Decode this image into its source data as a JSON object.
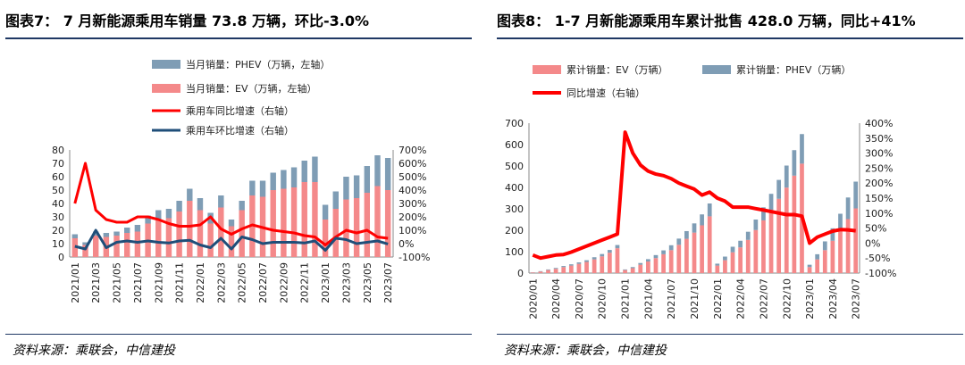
{
  "colors": {
    "ev": "#f4898a",
    "phev": "#7f9db5",
    "yoy": "#ff0000",
    "mom": "#1f4e79",
    "rule": "#1f3864"
  },
  "left": {
    "title": "图表7： 7 月新能源乘用车销量 73.8 万辆，环比-3.0%",
    "source": "资料来源：乘联会，中信建投"
  },
  "right": {
    "title": "图表8： 1-7 月新能源乘用车累计批售 428.0 万辆，同比+41%",
    "source": "资料来源：乘联会，中信建投"
  },
  "chart_data": [
    {
      "type": "bar",
      "stacked": true,
      "categories": [
        "2021/01",
        "2021/02",
        "2021/03",
        "2021/04",
        "2021/05",
        "2021/06",
        "2021/07",
        "2021/08",
        "2021/09",
        "2021/10",
        "2021/11",
        "2021/12",
        "2022/01",
        "2022/02",
        "2022/03",
        "2022/04",
        "2022/05",
        "2022/06",
        "2022/07",
        "2022/08",
        "2022/09",
        "2022/10",
        "2022/11",
        "2022/12",
        "2023/01",
        "2023/02",
        "2023/03",
        "2023/04",
        "2023/05",
        "2023/06",
        "2023/07"
      ],
      "tick_labels": [
        "2021/01",
        "2021/03",
        "2021/05",
        "2021/07",
        "2021/09",
        "2021/11",
        "2022/01",
        "2022/03",
        "2022/05",
        "2022/07",
        "2022/09",
        "2022/11",
        "2023/01",
        "2023/03",
        "2023/05",
        "2023/07"
      ],
      "series": [
        {
          "name": "当月销量：PHEV（万辆，左轴）",
          "axis": "left",
          "values": [
            3,
            2,
            3,
            3,
            3,
            4,
            5,
            6,
            7,
            7,
            8,
            9,
            9,
            8,
            9,
            5,
            7,
            11,
            12,
            13,
            14,
            15,
            16,
            19,
            11,
            13,
            17,
            17,
            20,
            23,
            24
          ]
        },
        {
          "name": "当月销量：EV（万辆，左轴）",
          "axis": "left",
          "values": [
            14,
            9,
            16,
            15,
            16,
            18,
            19,
            25,
            28,
            29,
            34,
            42,
            35,
            25,
            37,
            23,
            35,
            46,
            45,
            50,
            51,
            52,
            56,
            56,
            28,
            36,
            43,
            44,
            48,
            53,
            50
          ]
        },
        {
          "name": "乘用车同比增速（右轴）",
          "axis": "right",
          "values": [
            300,
            600,
            250,
            180,
            160,
            160,
            200,
            200,
            180,
            150,
            130,
            130,
            140,
            200,
            110,
            70,
            110,
            140,
            120,
            100,
            90,
            80,
            60,
            50,
            -10,
            50,
            100,
            80,
            100,
            50,
            40
          ]
        },
        {
          "name": "乘用车环比增速（右轴）",
          "axis": "right",
          "values": [
            -20,
            -40,
            100,
            -30,
            10,
            20,
            10,
            20,
            10,
            5,
            20,
            25,
            -10,
            -30,
            40,
            -40,
            50,
            30,
            0,
            10,
            10,
            10,
            5,
            20,
            -50,
            40,
            30,
            0,
            10,
            20,
            -3
          ]
        }
      ],
      "ylim_left": [
        0,
        80
      ],
      "yticks_left": [
        0,
        10,
        20,
        30,
        40,
        50,
        60,
        70,
        80
      ],
      "ylim_right": [
        -100,
        700
      ],
      "yticks_right": [
        "-100%",
        "0%",
        "100%",
        "200%",
        "300%",
        "400%",
        "500%",
        "600%",
        "700%"
      ],
      "legend_position": "top"
    },
    {
      "type": "bar",
      "stacked": true,
      "categories": [
        "2020/01",
        "2020/02",
        "2020/03",
        "2020/04",
        "2020/05",
        "2020/06",
        "2020/07",
        "2020/08",
        "2020/09",
        "2020/10",
        "2020/11",
        "2020/12",
        "2021/01",
        "2021/02",
        "2021/03",
        "2021/04",
        "2021/05",
        "2021/06",
        "2021/07",
        "2021/08",
        "2021/09",
        "2021/10",
        "2021/11",
        "2021/12",
        "2022/01",
        "2022/02",
        "2022/03",
        "2022/04",
        "2022/05",
        "2022/06",
        "2022/07",
        "2022/08",
        "2022/09",
        "2022/10",
        "2022/11",
        "2022/12",
        "2023/01",
        "2023/02",
        "2023/03",
        "2023/04",
        "2023/05",
        "2023/06",
        "2023/07"
      ],
      "tick_labels": [
        "2020/01",
        "2020/04",
        "2020/07",
        "2020/10",
        "2021/01",
        "2021/04",
        "2021/07",
        "2021/10",
        "2022/01",
        "2022/04",
        "2022/07",
        "2022/10",
        "2023/01",
        "2023/04",
        "2023/07"
      ],
      "series": [
        {
          "name": "累计销量：EV（万辆）",
          "axis": "left",
          "values": [
            3,
            7,
            14,
            20,
            28,
            35,
            43,
            52,
            64,
            78,
            95,
            116,
            14,
            23,
            39,
            54,
            70,
            88,
            107,
            132,
            160,
            189,
            223,
            265,
            35,
            60,
            97,
            120,
            155,
            201,
            246,
            296,
            347,
            399,
            455,
            511,
            28,
            64,
            107,
            151,
            199,
            252,
            302
          ]
        },
        {
          "name": "累计销量：PHEV（万辆）",
          "axis": "left",
          "values": [
            1,
            2,
            3,
            4,
            5,
            6,
            7,
            8,
            10,
            11,
            13,
            15,
            3,
            5,
            8,
            11,
            14,
            18,
            23,
            29,
            36,
            43,
            51,
            60,
            9,
            17,
            26,
            31,
            38,
            49,
            61,
            74,
            88,
            103,
            119,
            138,
            11,
            24,
            41,
            58,
            78,
            101,
            125
          ]
        },
        {
          "name": "同比增速（右轴）",
          "axis": "right",
          "values": [
            -40,
            -50,
            -45,
            -40,
            -38,
            -30,
            -20,
            -10,
            0,
            10,
            20,
            30,
            370,
            300,
            260,
            240,
            230,
            225,
            215,
            200,
            190,
            180,
            160,
            170,
            150,
            140,
            120,
            120,
            120,
            115,
            110,
            105,
            100,
            95,
            95,
            90,
            0,
            20,
            30,
            40,
            45,
            44,
            41
          ]
        }
      ],
      "ylim_left": [
        0,
        700
      ],
      "yticks_left": [
        0,
        100,
        200,
        300,
        400,
        500,
        600,
        700
      ],
      "ylim_right": [
        -100,
        400
      ],
      "yticks_right": [
        "-100%",
        "-50%",
        "0%",
        "50%",
        "100%",
        "150%",
        "200%",
        "250%",
        "300%",
        "350%",
        "400%"
      ],
      "legend_position": "top"
    }
  ]
}
